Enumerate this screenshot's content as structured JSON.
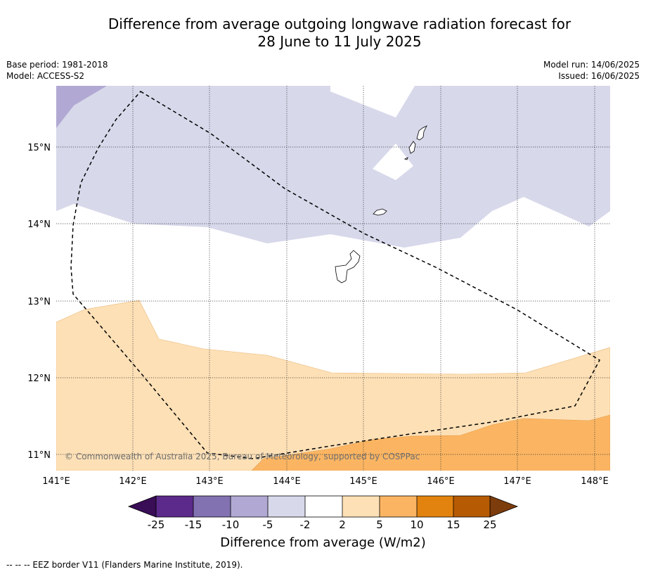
{
  "title_line1": "Difference from average outgoing longwave radiation forecast for",
  "title_line2": "28 June to 11 July 2025",
  "meta_left": [
    "Base period: 1981-2018",
    "Model: ACCESS-S2"
  ],
  "meta_right": [
    "Model run: 14/06/2025",
    "Issued: 16/06/2025"
  ],
  "copyright": "© Commonwealth of Australia 2025, Bureau of Meteorology, supported by COSPPac",
  "lon_ticks": [
    "141°E",
    "142°E",
    "143°E",
    "144°E",
    "145°E",
    "146°E",
    "147°E",
    "148°E"
  ],
  "lat_ticks": [
    "11°N",
    "12°N",
    "13°N",
    "14°N",
    "15°N"
  ],
  "colorbar": {
    "title": "Difference from average (W/m2)",
    "tick_labels": [
      "-25",
      "-15",
      "-10",
      "-5",
      "-2",
      "2",
      "5",
      "10",
      "15",
      "25"
    ],
    "colors": [
      "#3a0d57",
      "#5b2a8a",
      "#8372b2",
      "#b1a9d3",
      "#d7d8ea",
      "#ffffff",
      "#fde0b6",
      "#fbb562",
      "#e2830f",
      "#b65a04",
      "#7d3c0c"
    ]
  },
  "footnote": "--  --  -- EEZ border V11 (Flanders Marine Institute, 2019)."
}
